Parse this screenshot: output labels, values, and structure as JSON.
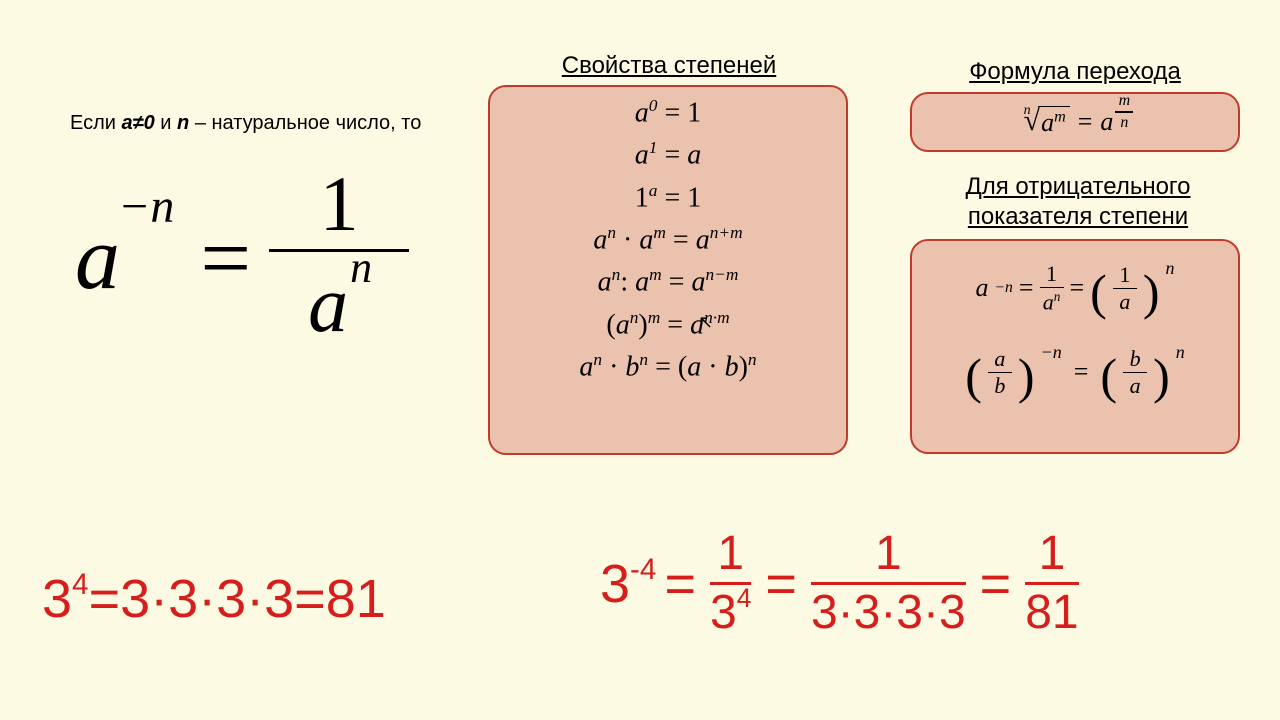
{
  "colors": {
    "background": "#fcfae2",
    "box_fill": "#ebc2ad",
    "box_border": "#c03b2e",
    "text": "#000000",
    "accent_red": "#d61f1c"
  },
  "condition": {
    "prefix": "Если ",
    "a_neq_0": "a≠0",
    "mid": " и ",
    "n_sym": "n",
    "suffix": " – натуральное число, то"
  },
  "main_formula": {
    "base": "a",
    "exp": "−n",
    "eq": "=",
    "num": "1",
    "den_base": "a",
    "den_exp": "n"
  },
  "headings": {
    "properties": "Свойства степеней",
    "transition": "Формула перехода",
    "negative_l1": "Для отрицательного",
    "negative_l2": "показателя степени"
  },
  "properties": [
    {
      "html": "a<sup>0</sup> <span class='rm'>= 1</span>"
    },
    {
      "html": "a<sup>1</sup> <span class='rm'>=</span> a"
    },
    {
      "html": "<span class='rm'>1</span><sup>a</sup> <span class='rm'>= 1</span>"
    },
    {
      "html": "a<sup>n</sup> <span class='rm'>·</span> a<sup>m</sup> <span class='rm'>=</span> a<sup>n+m</sup>"
    },
    {
      "html": "a<sup>n</sup><span class='rm'>:</span> a<sup>m</sup> <span class='rm'>=</span> a<sup>n−m</sup>"
    },
    {
      "html": "<span class='rm'>(</span>a<sup>n</sup><span class='rm'>)</span><sup>m</sup> <span class='rm'>=</span> a<sup>n·m</sup>"
    },
    {
      "html": "a<sup>n</sup> <span class='rm'>·</span> b<sup>n</sup> <span class='rm'>= (</span>a <span class='rm'>·</span> b<span class='rm'>)</span><sup>n</sup>"
    }
  ],
  "transition": {
    "root_index": "n",
    "root_arg_base": "a",
    "root_arg_exp": "m",
    "eq": "=",
    "rhs_base": "a",
    "rhs_frac_num": "m",
    "rhs_frac_den": "n"
  },
  "negative": {
    "lhs_base": "a",
    "lhs_exp": "−n",
    "eq": "=",
    "mid_num": "1",
    "mid_den_base": "a",
    "mid_den_exp": "n",
    "rhs_num": "1",
    "rhs_den": "a",
    "rhs_exp": "n",
    "row2_lnum": "a",
    "row2_lden": "b",
    "row2_lexp": "−n",
    "row2_rnum": "b",
    "row2_rden": "a",
    "row2_rexp": "n"
  },
  "example1": {
    "text": "3<sup>4</sup>=3·3·3·3=81"
  },
  "example2": {
    "lhs": "3<sup>-4</sup>",
    "eq": "=",
    "f1_num": "1",
    "f1_den": "3<sup>4</sup>",
    "f2_num": "1",
    "f2_den": "3·3·3·3",
    "f3_num": "1",
    "f3_den": "81"
  }
}
